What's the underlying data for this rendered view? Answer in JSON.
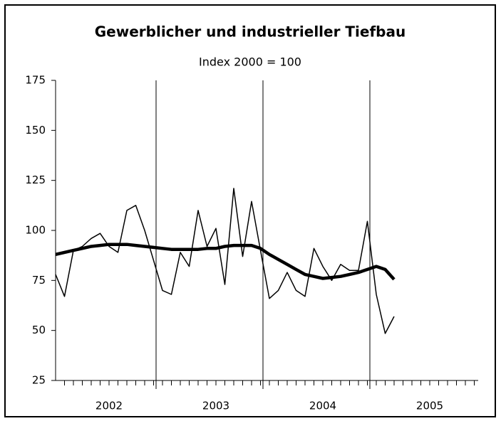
{
  "chart_data": {
    "type": "line",
    "title": "Gewerblicher und industrieller Tiefbau",
    "subtitle": "Index 2000 = 100",
    "x": [
      2002,
      2002.083,
      2002.167,
      2002.25,
      2002.333,
      2002.417,
      2002.5,
      2002.583,
      2002.667,
      2002.75,
      2002.833,
      2002.917,
      2003,
      2003.083,
      2003.167,
      2003.25,
      2003.333,
      2003.417,
      2003.5,
      2003.583,
      2003.667,
      2003.75,
      2003.833,
      2003.917,
      2004,
      2004.083,
      2004.167,
      2004.25,
      2004.333,
      2004.417,
      2004.5,
      2004.583,
      2004.667,
      2004.75,
      2004.833,
      2004.917,
      2005,
      2005.083,
      2005.167
    ],
    "series": [
      {
        "color": "#000000",
        "line_width": 1.5,
        "values": [
          78,
          67,
          90,
          92,
          96,
          98.5,
          92,
          89,
          110,
          112.5,
          100,
          85,
          70,
          68,
          89,
          82,
          110,
          92,
          101,
          73,
          121,
          87,
          114.5,
          90,
          66,
          70,
          79,
          70,
          67,
          91,
          82,
          75,
          83,
          80,
          80,
          104.5,
          68,
          48.5,
          57
        ]
      },
      {
        "color": "#000000",
        "line_width": 4.5,
        "values": [
          88,
          89,
          90,
          91,
          92,
          92.5,
          93,
          93,
          93,
          92.5,
          92,
          91.5,
          91,
          90.5,
          90.5,
          90.5,
          90.5,
          91,
          91,
          92,
          92.5,
          92.5,
          92.5,
          91,
          88,
          85.5,
          83,
          80.5,
          78,
          77,
          76,
          76.5,
          77,
          78,
          79,
          80.5,
          82,
          80.5,
          75.5
        ]
      }
    ],
    "xlim": [
      2002,
      2006
    ],
    "xticks": [
      {
        "value": 2002.5,
        "label": "2002"
      },
      {
        "value": 2003.5,
        "label": "2003"
      },
      {
        "value": 2004.5,
        "label": "2004"
      },
      {
        "value": 2005.5,
        "label": "2005"
      }
    ],
    "x_grid": [
      2003,
      2004,
      2005
    ],
    "ylim": [
      25,
      175
    ],
    "yticks": [
      25,
      50,
      75,
      100,
      125,
      150,
      175
    ]
  }
}
